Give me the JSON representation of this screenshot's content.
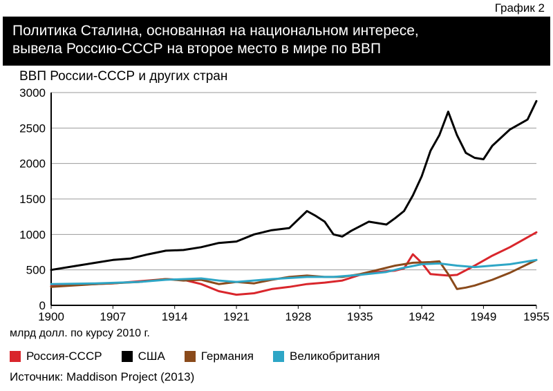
{
  "top_label": "График 2",
  "header": {
    "line1": "Политика Сталина, основанная на национальном интересе,",
    "line2": "вывела Россию-СССР на второе место в мире по ВВП"
  },
  "subtitle": "ВВП России-СССР и других стран",
  "x_subtitle": "млрд долл. по курсу 2010 г.",
  "source": "Источник: Maddison Project (2013)",
  "chart": {
    "type": "line",
    "background_color": "#ffffff",
    "axis_color": "#000000",
    "grid_color": "#9a9a9a",
    "grid_width": 1,
    "axis_width": 2,
    "xlim": [
      1900,
      1955
    ],
    "ylim": [
      0,
      3000
    ],
    "ytick_step": 500,
    "yticks": [
      0,
      500,
      1000,
      1500,
      2000,
      2500,
      3000
    ],
    "xticks": [
      1900,
      1907,
      1914,
      1921,
      1928,
      1935,
      1942,
      1949,
      1955
    ],
    "tick_fontsize": 17,
    "line_width": 3,
    "series": [
      {
        "name": "Россия-СССР",
        "color": "#d9262c",
        "x": [
          1900,
          1903,
          1907,
          1910,
          1913,
          1915,
          1917,
          1919,
          1921,
          1923,
          1925,
          1927,
          1929,
          1931,
          1933,
          1935,
          1937,
          1939,
          1940,
          1941,
          1942,
          1943,
          1944,
          1945,
          1946,
          1948,
          1950,
          1952,
          1955
        ],
        "y": [
          270,
          290,
          310,
          340,
          370,
          360,
          300,
          200,
          150,
          170,
          230,
          260,
          300,
          320,
          350,
          430,
          470,
          490,
          520,
          720,
          600,
          440,
          430,
          420,
          430,
          560,
          700,
          820,
          1030
        ]
      },
      {
        "name": "США",
        "color": "#000000",
        "x": [
          1900,
          1903,
          1905,
          1907,
          1909,
          1911,
          1913,
          1915,
          1917,
          1919,
          1921,
          1923,
          1925,
          1927,
          1929,
          1930,
          1931,
          1932,
          1933,
          1934,
          1936,
          1938,
          1939,
          1940,
          1941,
          1942,
          1943,
          1944,
          1945,
          1946,
          1947,
          1948,
          1949,
          1950,
          1952,
          1954,
          1955
        ],
        "y": [
          500,
          560,
          600,
          640,
          660,
          720,
          770,
          780,
          820,
          880,
          900,
          1000,
          1060,
          1090,
          1330,
          1260,
          1180,
          1000,
          970,
          1050,
          1180,
          1140,
          1230,
          1330,
          1550,
          1820,
          2180,
          2400,
          2730,
          2400,
          2150,
          2080,
          2060,
          2250,
          2480,
          2620,
          2880
        ]
      },
      {
        "name": "Германия",
        "color": "#8a4a1b",
        "x": [
          1900,
          1905,
          1910,
          1913,
          1915,
          1917,
          1919,
          1921,
          1923,
          1925,
          1927,
          1929,
          1931,
          1933,
          1935,
          1937,
          1939,
          1941,
          1943,
          1944,
          1945,
          1946,
          1947,
          1948,
          1950,
          1952,
          1955
        ],
        "y": [
          260,
          300,
          330,
          370,
          350,
          360,
          300,
          330,
          310,
          360,
          400,
          420,
          400,
          400,
          440,
          500,
          560,
          600,
          610,
          620,
          440,
          230,
          250,
          280,
          360,
          460,
          640
        ]
      },
      {
        "name": "Великобритания",
        "color": "#2ea6c6",
        "x": [
          1900,
          1905,
          1910,
          1913,
          1917,
          1919,
          1921,
          1925,
          1929,
          1932,
          1935,
          1938,
          1940,
          1942,
          1944,
          1946,
          1948,
          1950,
          1952,
          1955
        ],
        "y": [
          300,
          310,
          330,
          360,
          380,
          350,
          330,
          370,
          400,
          400,
          430,
          470,
          530,
          580,
          590,
          560,
          540,
          560,
          580,
          640
        ]
      }
    ]
  },
  "legend": {
    "items": [
      {
        "label": "Россия-СССР",
        "color": "#d9262c"
      },
      {
        "label": "США",
        "color": "#000000"
      },
      {
        "label": "Германия",
        "color": "#8a4a1b"
      },
      {
        "label": "Великобритания",
        "color": "#2ea6c6"
      }
    ]
  }
}
